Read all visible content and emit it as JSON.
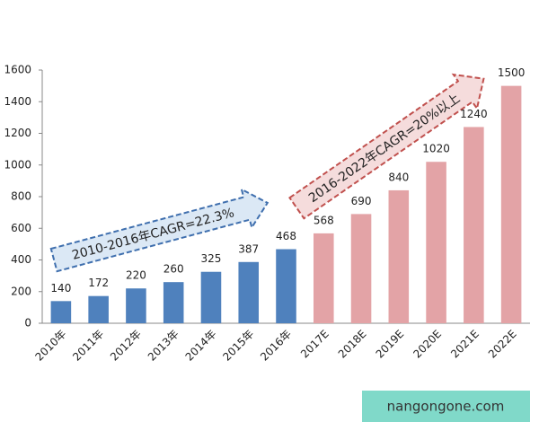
{
  "chart_data": {
    "type": "bar",
    "categories": [
      "2010年",
      "2011年",
      "2012年",
      "2013年",
      "2014年",
      "2015年",
      "2016年",
      "2017E",
      "2018E",
      "2019E",
      "2020E",
      "2021E",
      "2022E"
    ],
    "values": [
      140,
      172,
      220,
      260,
      325,
      387,
      468,
      568,
      690,
      840,
      1020,
      1240,
      1500
    ],
    "colors": [
      "#4f81bd",
      "#4f81bd",
      "#4f81bd",
      "#4f81bd",
      "#4f81bd",
      "#4f81bd",
      "#4f81bd",
      "#e3a3a6",
      "#e3a3a6",
      "#e3a3a6",
      "#e3a3a6",
      "#e3a3a6",
      "#e3a3a6"
    ],
    "ylim": [
      0,
      1600
    ],
    "yticks": [
      0,
      200,
      400,
      600,
      800,
      1000,
      1200,
      1400,
      1600
    ],
    "grid": false,
    "annotations": [
      "2010-2016年CAGR=22.3%",
      "2016-2022年CAGR=20%以上"
    ]
  },
  "watermark": "nangongone.com"
}
